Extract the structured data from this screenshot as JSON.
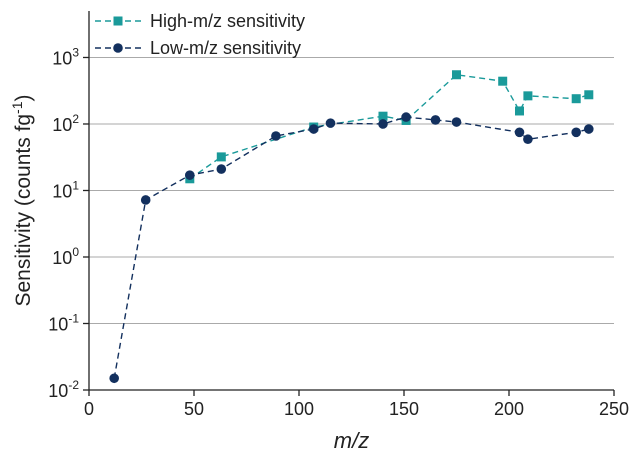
{
  "chart_data": {
    "type": "line",
    "x_label": "m/z",
    "y_label": {
      "text": "Sensitivity (counts fg",
      "exponent": "-1",
      "close": ")"
    },
    "log_y": true,
    "grid": true,
    "legend": "top-left",
    "xlim": [
      0,
      250
    ],
    "xticks": [
      0,
      50,
      100,
      150,
      200,
      250
    ],
    "ylim": [
      0.01,
      5000
    ],
    "yticks": [
      {
        "value": 0.01,
        "label": "10",
        "exponent": "-2"
      },
      {
        "value": 0.1,
        "label": "10",
        "exponent": "-1"
      },
      {
        "value": 1,
        "label": "10",
        "exponent": "0"
      },
      {
        "value": 10,
        "label": "10",
        "exponent": "1"
      },
      {
        "value": 100,
        "label": "10",
        "exponent": "2"
      },
      {
        "value": 1000,
        "label": "10",
        "exponent": "3"
      }
    ],
    "series": [
      {
        "name": "High-m/z sensitivity",
        "color": "#1a9a9a",
        "marker": "square",
        "x": [
          48,
          63,
          107,
          140,
          151,
          175,
          197,
          205,
          209,
          232,
          238
        ],
        "values": [
          15,
          32,
          90,
          131,
          113,
          550,
          440,
          157,
          265,
          240,
          275
        ]
      },
      {
        "name": "Low-m/z sensitivity",
        "color": "#13305e",
        "marker": "circle",
        "x": [
          12,
          27,
          48,
          63,
          89,
          107,
          115,
          140,
          151,
          165,
          175,
          205,
          209,
          232,
          238
        ],
        "values": [
          0.015,
          7.2,
          17,
          21,
          66,
          84,
          103,
          100,
          127,
          115,
          107,
          75,
          59,
          75,
          84
        ]
      }
    ]
  }
}
